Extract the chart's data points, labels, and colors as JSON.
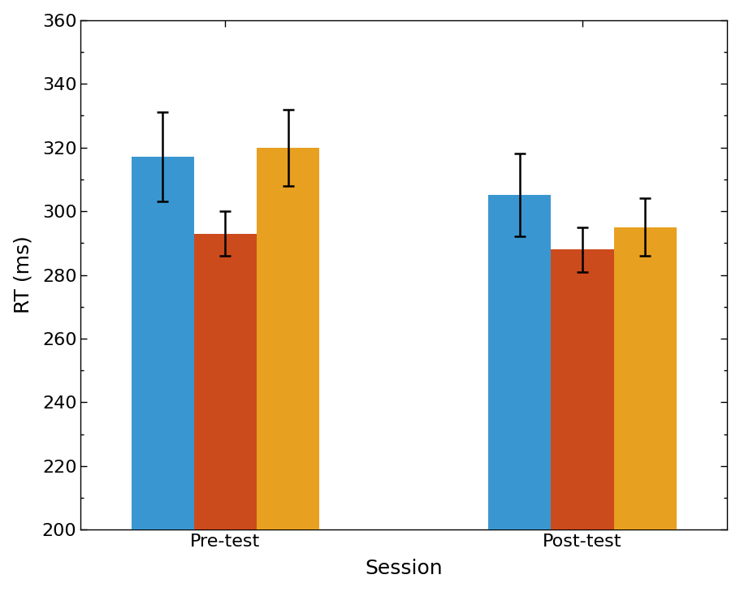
{
  "groups": [
    "Pre-test",
    "Post-test"
  ],
  "bar_values": [
    [
      317,
      293,
      320
    ],
    [
      305,
      288,
      295
    ]
  ],
  "bar_errors": [
    [
      14,
      7,
      12
    ],
    [
      13,
      7,
      9
    ]
  ],
  "bar_colors": [
    "#3A96D1",
    "#CC4B1C",
    "#E8A020"
  ],
  "xlabel": "Session",
  "ylabel": "RT (ms)",
  "ylim": [
    200,
    360
  ],
  "yticks": [
    200,
    220,
    240,
    260,
    280,
    300,
    320,
    340,
    360
  ],
  "bar_width": 0.13,
  "group_centers": [
    0.38,
    1.12
  ],
  "background_color": "#ffffff",
  "label_fontsize": 18,
  "tick_fontsize": 16
}
